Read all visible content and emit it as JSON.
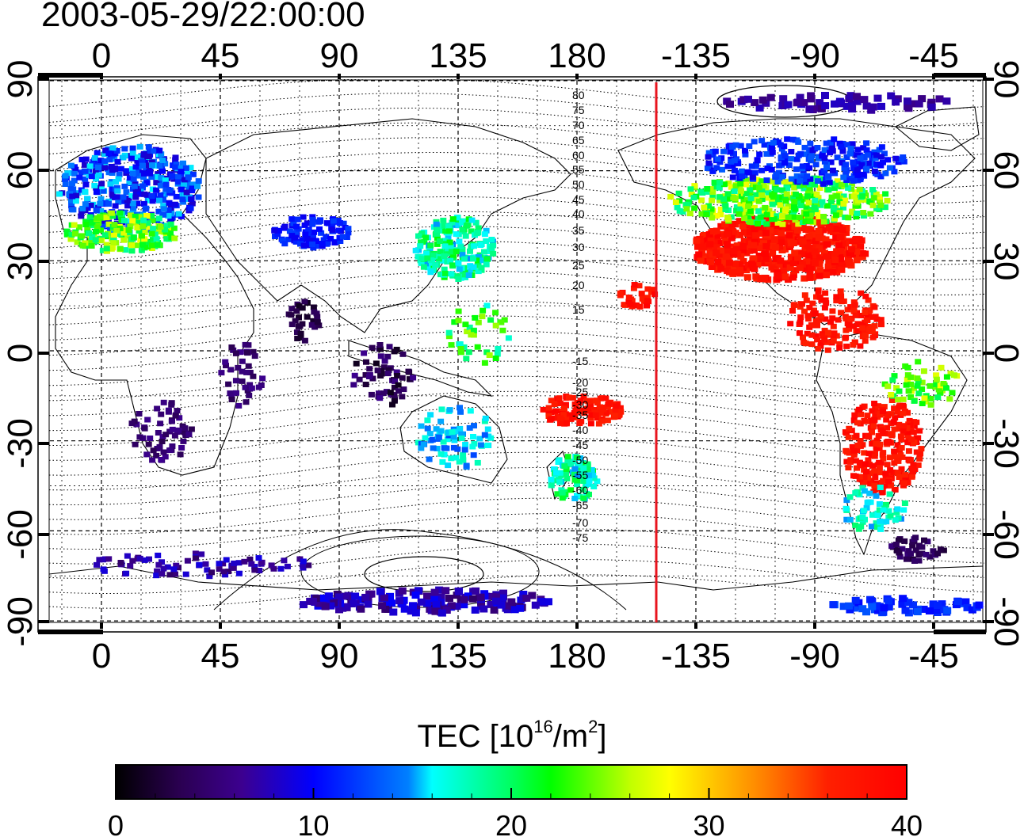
{
  "title": "2003-05-29/22:00:00",
  "map": {
    "top_lon_ticks": [
      "0",
      "45",
      "90",
      "135",
      "180",
      "-135",
      "-90",
      "-45"
    ],
    "bottom_lon_ticks": [
      "0",
      "45",
      "90",
      "135",
      "180",
      "-135",
      "-90",
      "-45"
    ],
    "left_lat_ticks": [
      "90",
      "60",
      "30",
      "0",
      "-30",
      "-60",
      "-90"
    ],
    "right_lat_ticks": [
      "90",
      "60",
      "30",
      "0",
      "-30",
      "-60",
      "-90"
    ],
    "contour_labels": [
      "80",
      "75",
      "70",
      "65",
      "60",
      "55",
      "50",
      "45",
      "40",
      "35",
      "30",
      "25",
      "20",
      "15",
      "-15",
      "-20",
      "-25",
      "-30",
      "-35",
      "-40",
      "-45",
      "-50",
      "-55",
      "-60",
      "-65",
      "-70",
      "-75"
    ],
    "terminator_color": "#e8141e"
  },
  "colorbar": {
    "title_main": "TEC  [10",
    "title_exp1": "16",
    "title_mid": "/m",
    "title_exp2": "2",
    "title_end": "]",
    "tick_labels": [
      "0",
      "10",
      "20",
      "30",
      "40"
    ],
    "min": 0,
    "max": 40,
    "colors": [
      "#000000",
      "#3c0078",
      "#0000ff",
      "#00ffff",
      "#00ff00",
      "#ffff00",
      "#ff8000",
      "#ff0000"
    ]
  }
}
